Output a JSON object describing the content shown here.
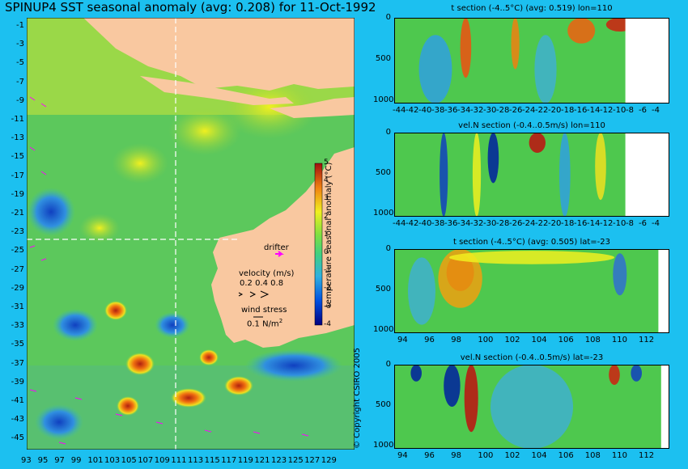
{
  "title": "SPINUP4 SST seasonal anomaly (avg: 0.208) for 11-Oct-1992",
  "map": {
    "lon_ticks": [
      "93",
      "95",
      "97",
      "99",
      "101",
      "103",
      "105",
      "107",
      "109",
      "111",
      "113",
      "115",
      "117",
      "119",
      "121",
      "123",
      "125",
      "127",
      "129"
    ],
    "lat_ticks": [
      "-1",
      "-3",
      "-5",
      "-7",
      "-9",
      "-11",
      "-13",
      "-15",
      "-17",
      "-19",
      "-21",
      "-23",
      "-25",
      "-27",
      "-29",
      "-31",
      "-33",
      "-35",
      "-37",
      "-39",
      "-41",
      "-43",
      "-45"
    ],
    "section_lon": "110",
    "section_lat": "-23",
    "colorbar": {
      "label": "temperature seasonal anomaly (°C)",
      "ticks": [
        "5",
        "4",
        "3",
        "2",
        "1",
        "0",
        "-1",
        "-2",
        "-3",
        "-4"
      ]
    },
    "legend": {
      "drifter": "drifter",
      "velocity_title": "velocity (m/s)",
      "velocity_values": "0.2 0.4 0.8",
      "wind_title": "wind stress",
      "wind_value": "0.1 N/m",
      "wind_exp": "2"
    },
    "copyright": "© Copyright CSIRO 2005",
    "colors": {
      "land": "#f9c8a0",
      "background": "#1cc0f0",
      "drifter": "#ff00ff"
    }
  },
  "panels": [
    {
      "title": "t section (-4..5°C) (avg: 0.519) lon=110",
      "x_ticks": [
        "-44",
        "-42",
        "-40",
        "-38",
        "-36",
        "-34",
        "-32",
        "-30",
        "-28",
        "-26",
        "-24",
        "-22",
        "-20",
        "-18",
        "-16",
        "-14",
        "-12",
        "-10",
        "-8",
        "-6",
        "-4"
      ],
      "y_ticks": [
        "0",
        "500",
        "1000"
      ]
    },
    {
      "title": "vel.N section (-0.4..0.5m/s) lon=110",
      "x_ticks": [
        "-44",
        "-42",
        "-40",
        "-38",
        "-36",
        "-34",
        "-32",
        "-30",
        "-28",
        "-26",
        "-24",
        "-22",
        "-20",
        "-18",
        "-16",
        "-14",
        "-12",
        "-10",
        "-8",
        "-6",
        "-4"
      ],
      "y_ticks": [
        "0",
        "500",
        "1000"
      ]
    },
    {
      "title": "t section (-4..5°C) (avg: 0.505) lat=-23",
      "x_ticks": [
        "94",
        "96",
        "98",
        "100",
        "102",
        "104",
        "106",
        "108",
        "110",
        "112"
      ],
      "y_ticks": [
        "0",
        "500",
        "1000"
      ]
    },
    {
      "title": "vel.N section (-0.4..0.5m/s) lat=-23",
      "x_ticks": [
        "94",
        "96",
        "98",
        "100",
        "102",
        "104",
        "106",
        "108",
        "110",
        "112"
      ],
      "y_ticks": [
        "0",
        "500",
        "1000"
      ]
    }
  ]
}
